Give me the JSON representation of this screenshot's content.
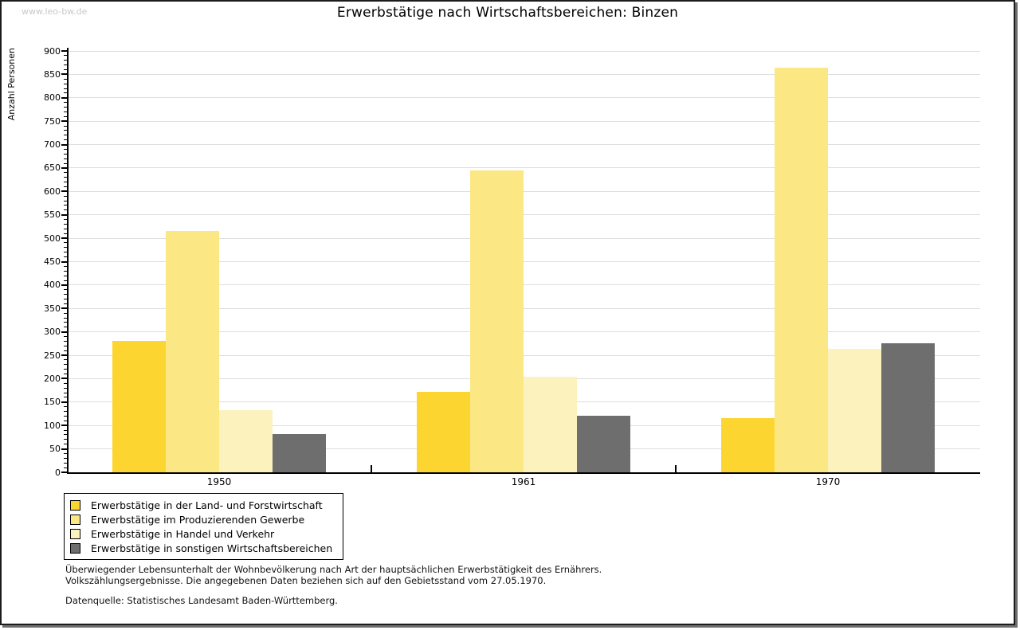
{
  "watermark": "www.leo-bw.de",
  "header": {
    "title": "Erwerbstätige nach Wirtschaftsbereichen: Binzen"
  },
  "chart_data": {
    "type": "bar",
    "title": "Erwerbstätige nach Wirtschaftsbereichen: Binzen",
    "xlabel": "",
    "ylabel": "Anzahl Personen",
    "categories": [
      "1950",
      "1961",
      "1970"
    ],
    "series": [
      {
        "name": "Erwerbstätige in der Land- und Forstwirtschaft",
        "color": "#FDD530",
        "values": [
          280,
          172,
          116
        ]
      },
      {
        "name": "Erwerbstätige im Produzierenden Gewerbe",
        "color": "#FCE785",
        "values": [
          515,
          645,
          865
        ]
      },
      {
        "name": "Erwerbstätige in Handel und Verkehr",
        "color": "#FCF2BE",
        "values": [
          133,
          205,
          263
        ]
      },
      {
        "name": "Erwerbstätige in sonstigen Wirtschaftsbereichen",
        "color": "#6E6E6E",
        "values": [
          82,
          120,
          275
        ]
      }
    ],
    "ylim": [
      0,
      900
    ],
    "ytick_step": 50,
    "yminor_step": 10,
    "grid": true,
    "legend_position": "bottom-left",
    "gridline_color": "#DEDEDE"
  },
  "footnote": {
    "line1": "Überwiegender Lebensunterhalt der Wohnbevölkerung nach Art der hauptsächlichen Erwerbstätigkeit des Ernährers.",
    "line2": "Volkszählungsergebnisse. Die angegebenen Daten beziehen sich auf den Gebietsstand vom 27.05.1970.",
    "source": "Datenquelle: Statistisches Landesamt Baden-Württemberg."
  }
}
